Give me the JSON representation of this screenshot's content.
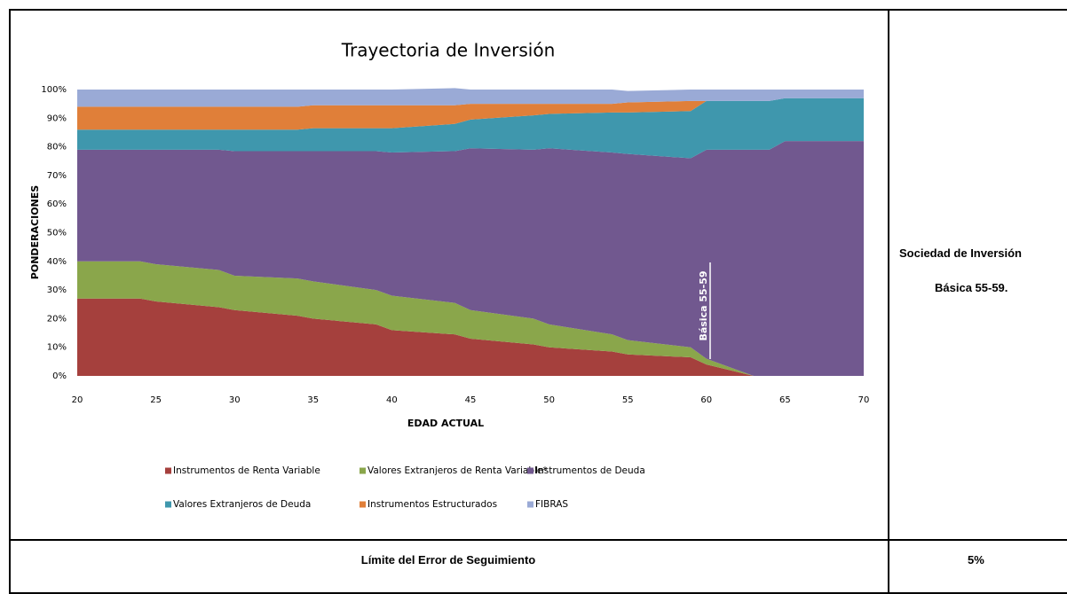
{
  "chart_data": {
    "type": "stacked_area",
    "title": "Trayectoria de Inversión",
    "xlabel": "EDAD ACTUAL",
    "ylabel": "PONDERACIONES",
    "annotation": "Básica 55-59",
    "x": [
      20,
      24,
      25,
      29,
      30,
      34,
      35,
      39,
      40,
      44,
      45,
      49,
      50,
      54,
      55,
      59,
      60,
      63,
      64,
      65,
      70
    ],
    "xlim": [
      20,
      70
    ],
    "xticks": [
      20,
      25,
      30,
      35,
      40,
      45,
      50,
      55,
      60,
      65,
      70
    ],
    "ylim": [
      0,
      100
    ],
    "yticks": [
      {
        "value": 0,
        "label": "0%"
      },
      {
        "value": 10,
        "label": "10%"
      },
      {
        "value": 20,
        "label": "20%"
      },
      {
        "value": 30,
        "label": "30%"
      },
      {
        "value": 40,
        "label": "40%"
      },
      {
        "value": 50,
        "label": "50%"
      },
      {
        "value": 60,
        "label": "60%"
      },
      {
        "value": 70,
        "label": "70%"
      },
      {
        "value": 80,
        "label": "80%"
      },
      {
        "value": 90,
        "label": "90%"
      },
      {
        "value": 100,
        "label": "100%"
      }
    ],
    "series": [
      {
        "name": "Instrumentos de Renta Variable",
        "color": "#a5403d",
        "values": [
          27,
          27,
          26,
          24,
          23,
          21,
          20,
          18,
          16,
          14.5,
          13,
          11,
          10,
          8.5,
          7.5,
          6.5,
          4,
          0,
          0,
          0,
          0
        ]
      },
      {
        "name": "Valores Extranjeros de Renta Variable*",
        "color": "#8aa64b",
        "values": [
          13,
          13,
          13,
          13,
          12,
          13,
          13,
          12,
          12,
          11,
          10,
          9,
          8,
          6,
          5,
          3.5,
          2,
          0,
          0,
          0,
          0
        ]
      },
      {
        "name": "Instrumentos de Deuda",
        "color": "#71588f",
        "values": [
          39,
          39,
          40,
          42,
          43.5,
          44.5,
          45.5,
          48.5,
          50,
          53,
          56.5,
          59,
          61.5,
          63.5,
          65,
          66,
          73,
          79,
          79,
          82,
          82
        ]
      },
      {
        "name": "Valores Extranjeros de Deuda",
        "color": "#3f97ad",
        "values": [
          7,
          7,
          7,
          7,
          7.5,
          7.5,
          8,
          8,
          8.5,
          9.5,
          10,
          12,
          12,
          14,
          14.5,
          16.5,
          17,
          17,
          17,
          15,
          15
        ]
      },
      {
        "name": "Instrumentos Estructurados",
        "color": "#e07f39",
        "values": [
          8,
          8,
          8,
          8,
          8,
          8,
          8,
          8,
          8,
          6.5,
          5.5,
          4,
          3.5,
          3,
          3.5,
          3.5,
          0,
          0,
          0,
          0,
          0
        ]
      },
      {
        "name": "FIBRAS",
        "color": "#9aaad6",
        "values": [
          6,
          6,
          6,
          6,
          6,
          6,
          5.5,
          5.5,
          5.5,
          6,
          5,
          5,
          5,
          5,
          4,
          4,
          4,
          4,
          4,
          3,
          3
        ]
      }
    ]
  },
  "side_cell": {
    "line1": "Sociedad de Inversión",
    "line2": "Básica 55-59."
  },
  "footer_row": {
    "label": "Límite del Error de Seguimiento",
    "value": "5%"
  }
}
